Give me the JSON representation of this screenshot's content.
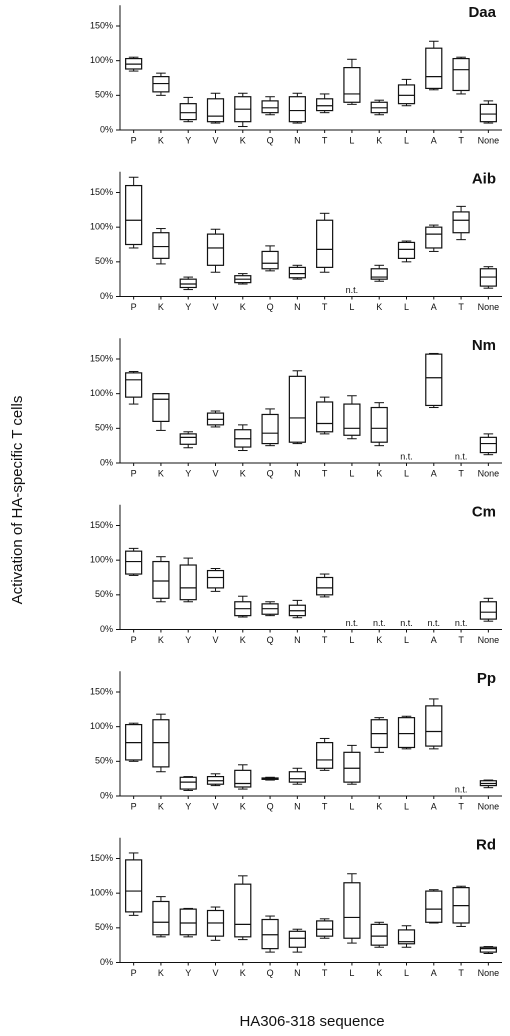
{
  "ylabel": "Activation of HA-specific T cells",
  "xlabel": "HA306-318 sequence",
  "chart_data": [
    {
      "type": "box",
      "title": "Daa",
      "categories": [
        "P",
        "K",
        "Y",
        "V",
        "K",
        "Q",
        "N",
        "T",
        "L",
        "K",
        "L",
        "A",
        "T",
        "None"
      ],
      "ylim": [
        0,
        180
      ],
      "yticks": [
        {
          "value": 0,
          "label": "0%"
        },
        {
          "value": 50,
          "label": "50%"
        },
        {
          "value": 100,
          "label": "100%"
        },
        {
          "value": 150,
          "label": "150%"
        }
      ],
      "boxes": [
        {
          "min": 85,
          "q1": 88,
          "median": 95,
          "q3": 103,
          "max": 105
        },
        {
          "min": 50,
          "q1": 55,
          "median": 67,
          "q3": 77,
          "max": 82
        },
        {
          "min": 12,
          "q1": 15,
          "median": 25,
          "q3": 38,
          "max": 47
        },
        {
          "min": 10,
          "q1": 12,
          "median": 20,
          "q3": 45,
          "max": 53
        },
        {
          "min": 5,
          "q1": 12,
          "median": 30,
          "q3": 48,
          "max": 53
        },
        {
          "min": 22,
          "q1": 25,
          "median": 32,
          "q3": 42,
          "max": 48
        },
        {
          "min": 10,
          "q1": 12,
          "median": 28,
          "q3": 48,
          "max": 53
        },
        {
          "min": 25,
          "q1": 28,
          "median": 35,
          "q3": 45,
          "max": 52
        },
        {
          "min": 37,
          "q1": 40,
          "median": 52,
          "q3": 90,
          "max": 102
        },
        {
          "min": 22,
          "q1": 25,
          "median": 32,
          "q3": 40,
          "max": 43
        },
        {
          "min": 35,
          "q1": 38,
          "median": 50,
          "q3": 65,
          "max": 73
        },
        {
          "min": 58,
          "q1": 60,
          "median": 77,
          "q3": 118,
          "max": 128
        },
        {
          "min": 52,
          "q1": 57,
          "median": 87,
          "q3": 103,
          "max": 105
        },
        {
          "min": 10,
          "q1": 12,
          "median": 23,
          "q3": 37,
          "max": 42
        }
      ]
    },
    {
      "type": "box",
      "title": "Aib",
      "categories": [
        "P",
        "K",
        "Y",
        "V",
        "K",
        "Q",
        "N",
        "T",
        "L",
        "K",
        "L",
        "A",
        "T",
        "None"
      ],
      "ylim": [
        0,
        180
      ],
      "yticks": [
        {
          "value": 0,
          "label": "0%"
        },
        {
          "value": 50,
          "label": "50%"
        },
        {
          "value": 100,
          "label": "100%"
        },
        {
          "value": 150,
          "label": "150%"
        }
      ],
      "missing_label": "n.t.",
      "boxes": [
        {
          "min": 70,
          "q1": 75,
          "median": 110,
          "q3": 160,
          "max": 172
        },
        {
          "min": 47,
          "q1": 55,
          "median": 72,
          "q3": 92,
          "max": 98
        },
        {
          "min": 10,
          "q1": 13,
          "median": 18,
          "q3": 25,
          "max": 28
        },
        {
          "min": 35,
          "q1": 45,
          "median": 70,
          "q3": 90,
          "max": 97
        },
        {
          "min": 18,
          "q1": 20,
          "median": 25,
          "q3": 30,
          "max": 33
        },
        {
          "min": 37,
          "q1": 40,
          "median": 48,
          "q3": 65,
          "max": 73
        },
        {
          "min": 25,
          "q1": 27,
          "median": 33,
          "q3": 42,
          "max": 45
        },
        {
          "min": 35,
          "q1": 42,
          "median": 68,
          "q3": 110,
          "max": 120
        },
        null,
        {
          "min": 22,
          "q1": 25,
          "median": 28,
          "q3": 40,
          "max": 45
        },
        {
          "min": 50,
          "q1": 55,
          "median": 68,
          "q3": 78,
          "max": 80
        },
        {
          "min": 65,
          "q1": 70,
          "median": 90,
          "q3": 100,
          "max": 103
        },
        {
          "min": 82,
          "q1": 92,
          "median": 110,
          "q3": 122,
          "max": 130
        },
        {
          "min": 12,
          "q1": 15,
          "median": 28,
          "q3": 40,
          "max": 43
        }
      ]
    },
    {
      "type": "box",
      "title": "Nm",
      "categories": [
        "P",
        "K",
        "Y",
        "V",
        "K",
        "Q",
        "N",
        "T",
        "L",
        "K",
        "L",
        "A",
        "T",
        "None"
      ],
      "ylim": [
        0,
        180
      ],
      "yticks": [
        {
          "value": 0,
          "label": "0%"
        },
        {
          "value": 50,
          "label": "50%"
        },
        {
          "value": 100,
          "label": "100%"
        },
        {
          "value": 150,
          "label": "150%"
        }
      ],
      "missing_label": "n.t.",
      "boxes": [
        {
          "min": 85,
          "q1": 95,
          "median": 120,
          "q3": 130,
          "max": 132
        },
        {
          "min": 47,
          "q1": 60,
          "median": 92,
          "q3": 100,
          "max": 100
        },
        {
          "min": 22,
          "q1": 27,
          "median": 37,
          "q3": 42,
          "max": 45
        },
        {
          "min": 52,
          "q1": 55,
          "median": 63,
          "q3": 72,
          "max": 75
        },
        {
          "min": 18,
          "q1": 23,
          "median": 35,
          "q3": 48,
          "max": 55
        },
        {
          "min": 25,
          "q1": 28,
          "median": 43,
          "q3": 70,
          "max": 78
        },
        {
          "min": 28,
          "q1": 30,
          "median": 65,
          "q3": 125,
          "max": 133
        },
        {
          "min": 42,
          "q1": 45,
          "median": 57,
          "q3": 88,
          "max": 95
        },
        {
          "min": 35,
          "q1": 40,
          "median": 50,
          "q3": 85,
          "max": 97
        },
        {
          "min": 25,
          "q1": 30,
          "median": 50,
          "q3": 80,
          "max": 87
        },
        null,
        {
          "min": 80,
          "q1": 83,
          "median": 123,
          "q3": 157,
          "max": 158
        },
        null,
        {
          "min": 12,
          "q1": 15,
          "median": 28,
          "q3": 37,
          "max": 42
        }
      ]
    },
    {
      "type": "box",
      "title": "Cm",
      "categories": [
        "P",
        "K",
        "Y",
        "V",
        "K",
        "Q",
        "N",
        "T",
        "L",
        "K",
        "L",
        "A",
        "T",
        "None"
      ],
      "ylim": [
        0,
        180
      ],
      "yticks": [
        {
          "value": 0,
          "label": "0%"
        },
        {
          "value": 50,
          "label": "50%"
        },
        {
          "value": 100,
          "label": "100%"
        },
        {
          "value": 150,
          "label": "150%"
        }
      ],
      "missing_label": "n.t.",
      "boxes": [
        {
          "min": 78,
          "q1": 80,
          "median": 98,
          "q3": 113,
          "max": 117
        },
        {
          "min": 40,
          "q1": 45,
          "median": 70,
          "q3": 98,
          "max": 105
        },
        {
          "min": 40,
          "q1": 43,
          "median": 60,
          "q3": 93,
          "max": 103
        },
        {
          "min": 55,
          "q1": 60,
          "median": 75,
          "q3": 85,
          "max": 88
        },
        {
          "min": 18,
          "q1": 20,
          "median": 30,
          "q3": 40,
          "max": 48
        },
        {
          "min": 20,
          "q1": 22,
          "median": 30,
          "q3": 37,
          "max": 40
        },
        {
          "min": 17,
          "q1": 20,
          "median": 27,
          "q3": 35,
          "max": 42
        },
        {
          "min": 47,
          "q1": 50,
          "median": 60,
          "q3": 75,
          "max": 80
        },
        null,
        null,
        null,
        null,
        null,
        {
          "min": 12,
          "q1": 15,
          "median": 25,
          "q3": 40,
          "max": 45
        }
      ]
    },
    {
      "type": "box",
      "title": "Pp",
      "categories": [
        "P",
        "K",
        "Y",
        "V",
        "K",
        "Q",
        "N",
        "T",
        "L",
        "K",
        "L",
        "A",
        "T",
        "None"
      ],
      "ylim": [
        0,
        180
      ],
      "yticks": [
        {
          "value": 0,
          "label": "0%"
        },
        {
          "value": 50,
          "label": "50%"
        },
        {
          "value": 100,
          "label": "100%"
        },
        {
          "value": 150,
          "label": "150%"
        }
      ],
      "missing_label": "n.t.",
      "boxes": [
        {
          "min": 50,
          "q1": 52,
          "median": 77,
          "q3": 103,
          "max": 105
        },
        {
          "min": 35,
          "q1": 42,
          "median": 77,
          "q3": 110,
          "max": 118
        },
        {
          "min": 8,
          "q1": 10,
          "median": 20,
          "q3": 27,
          "max": 28
        },
        {
          "min": 15,
          "q1": 17,
          "median": 22,
          "q3": 28,
          "max": 32
        },
        {
          "min": 10,
          "q1": 13,
          "median": 18,
          "q3": 37,
          "max": 45
        },
        {
          "min": 23,
          "q1": 24,
          "median": 25,
          "q3": 26,
          "max": 27
        },
        {
          "min": 17,
          "q1": 20,
          "median": 25,
          "q3": 35,
          "max": 40
        },
        {
          "min": 37,
          "q1": 40,
          "median": 52,
          "q3": 77,
          "max": 83
        },
        {
          "min": 17,
          "q1": 20,
          "median": 40,
          "q3": 63,
          "max": 73
        },
        {
          "min": 63,
          "q1": 70,
          "median": 90,
          "q3": 110,
          "max": 113
        },
        {
          "min": 68,
          "q1": 70,
          "median": 90,
          "q3": 113,
          "max": 115
        },
        {
          "min": 68,
          "q1": 72,
          "median": 93,
          "q3": 130,
          "max": 140
        },
        null,
        {
          "min": 12,
          "q1": 15,
          "median": 18,
          "q3": 22,
          "max": 23
        }
      ]
    },
    {
      "type": "box",
      "title": "Rd",
      "categories": [
        "P",
        "K",
        "Y",
        "V",
        "K",
        "Q",
        "N",
        "T",
        "L",
        "K",
        "L",
        "A",
        "T",
        "None"
      ],
      "ylim": [
        0,
        180
      ],
      "yticks": [
        {
          "value": 0,
          "label": "0%"
        },
        {
          "value": 50,
          "label": "50%"
        },
        {
          "value": 100,
          "label": "100%"
        },
        {
          "value": 150,
          "label": "150%"
        }
      ],
      "boxes": [
        {
          "min": 68,
          "q1": 73,
          "median": 103,
          "q3": 148,
          "max": 158
        },
        {
          "min": 37,
          "q1": 40,
          "median": 58,
          "q3": 88,
          "max": 95
        },
        {
          "min": 37,
          "q1": 40,
          "median": 57,
          "q3": 77,
          "max": 78
        },
        {
          "min": 32,
          "q1": 38,
          "median": 57,
          "q3": 75,
          "max": 80
        },
        {
          "min": 33,
          "q1": 37,
          "median": 55,
          "q3": 113,
          "max": 125
        },
        {
          "min": 15,
          "q1": 20,
          "median": 40,
          "q3": 62,
          "max": 67
        },
        {
          "min": 15,
          "q1": 22,
          "median": 35,
          "q3": 45,
          "max": 48
        },
        {
          "min": 35,
          "q1": 38,
          "median": 48,
          "q3": 60,
          "max": 63
        },
        {
          "min": 28,
          "q1": 35,
          "median": 65,
          "q3": 115,
          "max": 128
        },
        {
          "min": 22,
          "q1": 25,
          "median": 38,
          "q3": 55,
          "max": 58
        },
        {
          "min": 22,
          "q1": 27,
          "median": 30,
          "q3": 47,
          "max": 53
        },
        {
          "min": 57,
          "q1": 58,
          "median": 77,
          "q3": 103,
          "max": 105
        },
        {
          "min": 52,
          "q1": 57,
          "median": 82,
          "q3": 108,
          "max": 110
        },
        {
          "min": 13,
          "q1": 15,
          "median": 20,
          "q3": 22,
          "max": 23
        }
      ]
    }
  ]
}
